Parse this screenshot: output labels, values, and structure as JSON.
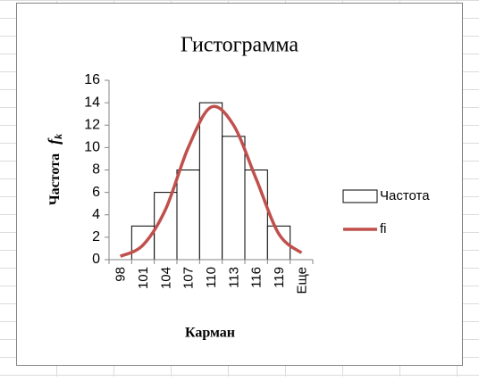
{
  "chart_data": {
    "type": "bar",
    "title": "Гистограмма",
    "x_label": "Карман",
    "y_label": "Частота",
    "y_label_symbol": "f",
    "y_label_subscript": "k",
    "categories": [
      "98",
      "101",
      "104",
      "107",
      "110",
      "113",
      "116",
      "119",
      "Еще"
    ],
    "series": [
      {
        "name": "Частота",
        "type": "bar",
        "color": "#ffffff",
        "values": [
          0,
          3,
          6,
          8,
          14,
          11,
          8,
          3,
          0
        ]
      },
      {
        "name": "fi",
        "type": "line",
        "color": "#c0504d",
        "values": [
          0.3,
          1.3,
          4.5,
          10,
          13.6,
          12,
          7.2,
          2.3,
          0.6
        ]
      }
    ],
    "ylim": [
      0,
      16
    ],
    "yticks": [
      0,
      2,
      4,
      6,
      8,
      10,
      12,
      14,
      16
    ],
    "grid": false,
    "legend": "right"
  }
}
